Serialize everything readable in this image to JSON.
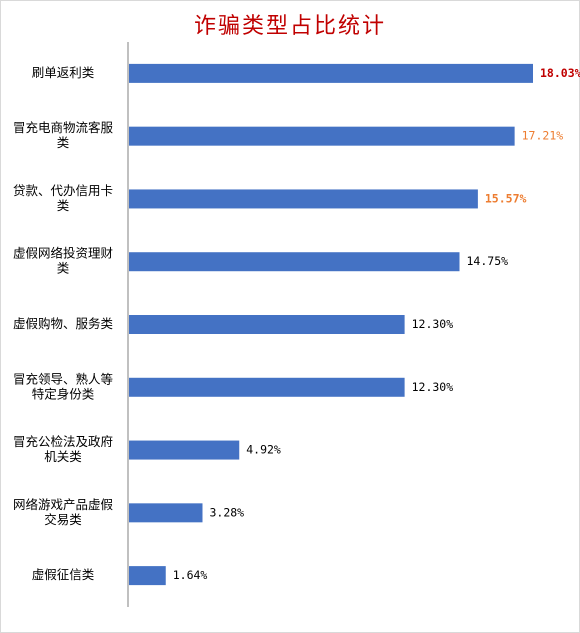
{
  "chart_data": {
    "type": "bar",
    "orientation": "horizontal",
    "title": "诈骗类型占比统计",
    "categories": [
      [
        "刷单返利类"
      ],
      [
        "冒充电商物流客服",
        "类"
      ],
      [
        "贷款、代办信用卡",
        "类"
      ],
      [
        "虚假网络投资理财",
        "类"
      ],
      [
        "虚假购物、服务类"
      ],
      [
        "冒充领导、熟人等",
        "特定身份类"
      ],
      [
        "冒充公检法及政府",
        "机关类"
      ],
      [
        "网络游戏产品虚假",
        "交易类"
      ],
      [
        "虚假征信类"
      ]
    ],
    "values": [
      18.03,
      17.21,
      15.57,
      14.75,
      12.3,
      12.3,
      4.92,
      3.28,
      1.64
    ],
    "value_labels": [
      "18.03%",
      "17.21%",
      "15.57%",
      "14.75%",
      "12.30%",
      "12.30%",
      "4.92%",
      "3.28%",
      "1.64%"
    ],
    "label_colors": [
      "#c00000",
      "#ed7d31",
      "#ed7d31",
      "#000000",
      "#000000",
      "#000000",
      "#000000",
      "#000000",
      "#000000"
    ],
    "label_bold": [
      true,
      false,
      true,
      false,
      false,
      false,
      false,
      false,
      false
    ],
    "bar_color": "#4472c4",
    "axis_color": "#808080",
    "xlim": [
      0,
      18.03
    ],
    "grid": false,
    "legend": "none"
  }
}
